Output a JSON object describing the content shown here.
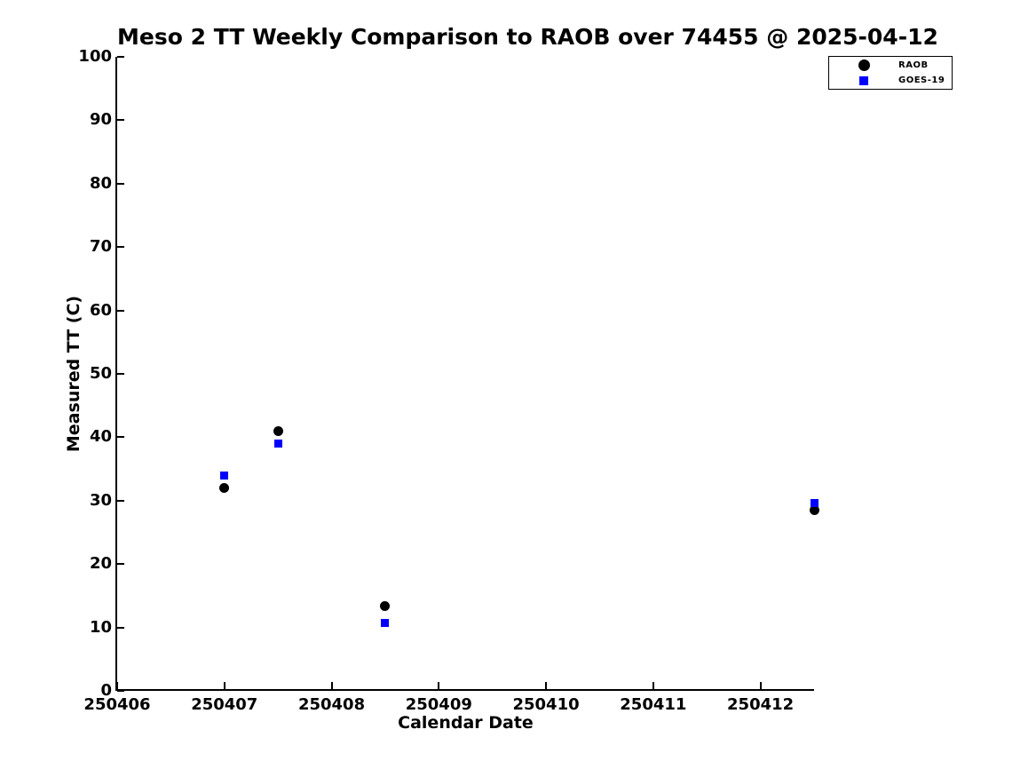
{
  "chart_data": {
    "type": "scatter",
    "title": "Meso 2 TT Weekly Comparison to RAOB over 74455 @ 2025-04-12",
    "xlabel": "Calendar Date",
    "ylabel": "Measured TT (C)",
    "xlim": [
      250406,
      250412.5
    ],
    "ylim": [
      0,
      100
    ],
    "x_ticks": [
      "250406",
      "250407",
      "250408",
      "250409",
      "250410",
      "250411",
      "250412"
    ],
    "y_ticks": [
      "0",
      "10",
      "20",
      "30",
      "40",
      "50",
      "60",
      "70",
      "80",
      "90",
      "100"
    ],
    "grid": false,
    "legend_position": "top-right",
    "axis_color": "#000000",
    "background_color": "#ffffff",
    "series": [
      {
        "name": "RAOB",
        "marker": "circle",
        "color": "#000000",
        "marker_size": 11,
        "legend_marker_size": 13,
        "points": [
          {
            "x": 250407.0,
            "y": 32.0
          },
          {
            "x": 250407.5,
            "y": 41.0
          },
          {
            "x": 250408.5,
            "y": 13.4
          },
          {
            "x": 250412.5,
            "y": 28.5
          }
        ]
      },
      {
        "name": "GOES-19",
        "marker": "square",
        "color": "#0000ff",
        "marker_size": 9,
        "legend_marker_size": 10,
        "points": [
          {
            "x": 250407.0,
            "y": 34.0
          },
          {
            "x": 250407.5,
            "y": 39.0
          },
          {
            "x": 250408.5,
            "y": 10.7
          },
          {
            "x": 250412.5,
            "y": 29.6
          }
        ]
      }
    ]
  }
}
